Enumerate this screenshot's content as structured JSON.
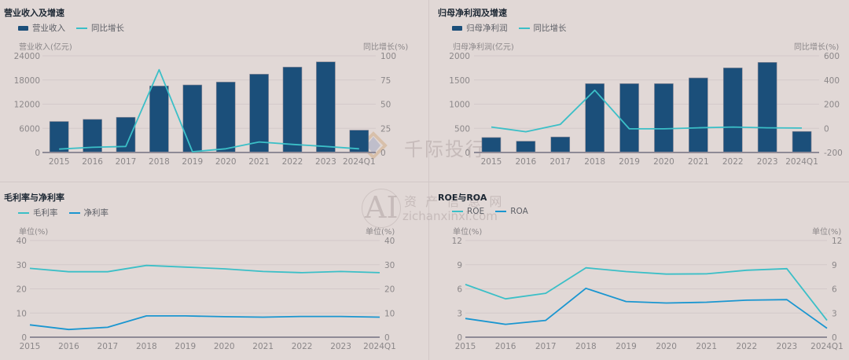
{
  "colors": {
    "background": "#e1d8d6",
    "bar": "#1b4f7a",
    "teal_line": "#3bbfc7",
    "blue_line": "#1a96d0",
    "grid": "#d3c9ca",
    "axis": "#8e8a96",
    "tick_text": "#8b8789"
  },
  "watermarks": {
    "qianji": "千际投行",
    "ai_logo": "AI",
    "zichan_cn": "资 产 信 息 网",
    "zichan_url": "zichanxinxi.com"
  },
  "revenue_panel": {
    "title": "营业收入及增速",
    "legend": [
      "营业收入",
      "同比增长"
    ],
    "left_axis_title": "营业收入(亿元)",
    "right_axis_title": "同比增长(%)"
  },
  "profit_panel": {
    "title": "归母净利润及增速",
    "legend": [
      "归母净利润",
      "同比增长"
    ],
    "left_axis_title": "归母净利润(亿元)",
    "right_axis_title": "同比增长(%)"
  },
  "margin_panel": {
    "title": "毛利率与净利率",
    "legend": [
      "毛利率",
      "净利率"
    ],
    "left_axis_title": "单位(%)",
    "right_axis_title": "单位(%)"
  },
  "roe_panel": {
    "title": "ROE与ROA",
    "legend": [
      "ROE",
      "ROA"
    ],
    "left_axis_title": "单位(%)",
    "right_axis_title": "单位(%)"
  },
  "chart_data": [
    {
      "type": "bar",
      "title": "营业收入及增速",
      "categories": [
        "2015",
        "2016",
        "2017",
        "2018",
        "2019",
        "2020",
        "2021",
        "2022",
        "2023",
        "2024Q1"
      ],
      "series": [
        {
          "name": "营业收入",
          "type": "bar",
          "axis": "left",
          "values": [
            7700,
            8220,
            8740,
            16510,
            16770,
            17490,
            19440,
            21200,
            22500,
            5550
          ]
        },
        {
          "name": "同比增长",
          "type": "line",
          "axis": "right",
          "values": [
            3.5,
            5.4,
            6.3,
            85.6,
            0.8,
            3.8,
            10.9,
            8.4,
            6.3,
            3.8
          ]
        }
      ],
      "ylabel": "营业收入(亿元)",
      "ylabel_right": "同比增长(%)",
      "ylim": [
        0,
        24000
      ],
      "yticks": [
        0,
        6000,
        12000,
        18000,
        24000
      ],
      "ylim_right": [
        0,
        100
      ],
      "yticks_right": [
        0,
        25,
        50,
        75,
        100
      ],
      "grid": true,
      "legend_position": "top-left"
    },
    {
      "type": "bar",
      "title": "归母净利润及增速",
      "categories": [
        "2015",
        "2016",
        "2017",
        "2018",
        "2019",
        "2020",
        "2021",
        "2022",
        "2023",
        "2024Q1"
      ],
      "series": [
        {
          "name": "归母净利润",
          "type": "bar",
          "axis": "left",
          "values": [
            310,
            234,
            321,
            1424,
            1424,
            1424,
            1543,
            1750,
            1864,
            435
          ]
        },
        {
          "name": "同比增长",
          "type": "line",
          "axis": "right",
          "values": [
            11,
            -28,
            33,
            315,
            -4,
            -4,
            4,
            11,
            4,
            2
          ]
        }
      ],
      "ylabel": "归母净利润(亿元)",
      "ylabel_right": "同比增长(%)",
      "ylim": [
        0,
        2000
      ],
      "yticks": [
        0,
        500,
        1000,
        1500,
        2000
      ],
      "ylim_right": [
        -200,
        600
      ],
      "yticks_right": [
        -200,
        0,
        200,
        400,
        600
      ],
      "grid": true,
      "legend_position": "top-left"
    },
    {
      "type": "line",
      "title": "毛利率与净利率",
      "categories": [
        "2015",
        "2016",
        "2017",
        "2018",
        "2019",
        "2020",
        "2021",
        "2022",
        "2023",
        "2024Q1"
      ],
      "series": [
        {
          "name": "毛利率",
          "values": [
            28.5,
            27.1,
            27.1,
            29.7,
            29.0,
            28.3,
            27.2,
            26.7,
            27.2,
            26.7
          ]
        },
        {
          "name": "净利率",
          "values": [
            5.1,
            3.2,
            4.1,
            8.8,
            8.8,
            8.5,
            8.3,
            8.6,
            8.6,
            8.3
          ]
        }
      ],
      "ylabel": "单位(%)",
      "ylabel_right": "单位(%)",
      "ylim": [
        0,
        40
      ],
      "yticks": [
        0,
        10,
        20,
        30,
        40
      ],
      "grid": true,
      "legend_position": "top-left"
    },
    {
      "type": "line",
      "title": "ROE与ROA",
      "categories": [
        "2015",
        "2016",
        "2017",
        "2018",
        "2019",
        "2020",
        "2021",
        "2022",
        "2023",
        "2024Q1"
      ],
      "series": [
        {
          "name": "ROE",
          "values": [
            6.55,
            4.76,
            5.45,
            8.61,
            8.15,
            7.83,
            7.86,
            8.31,
            8.51,
            2.09
          ]
        },
        {
          "name": "ROA",
          "values": [
            2.32,
            1.6,
            2.09,
            6.07,
            4.43,
            4.24,
            4.34,
            4.6,
            4.66,
            1.11
          ]
        }
      ],
      "ylabel": "单位(%)",
      "ylabel_right": "单位(%)",
      "ylim": [
        0,
        12
      ],
      "yticks": [
        0,
        3,
        6,
        9,
        12
      ],
      "grid": true,
      "legend_position": "top-left"
    }
  ]
}
